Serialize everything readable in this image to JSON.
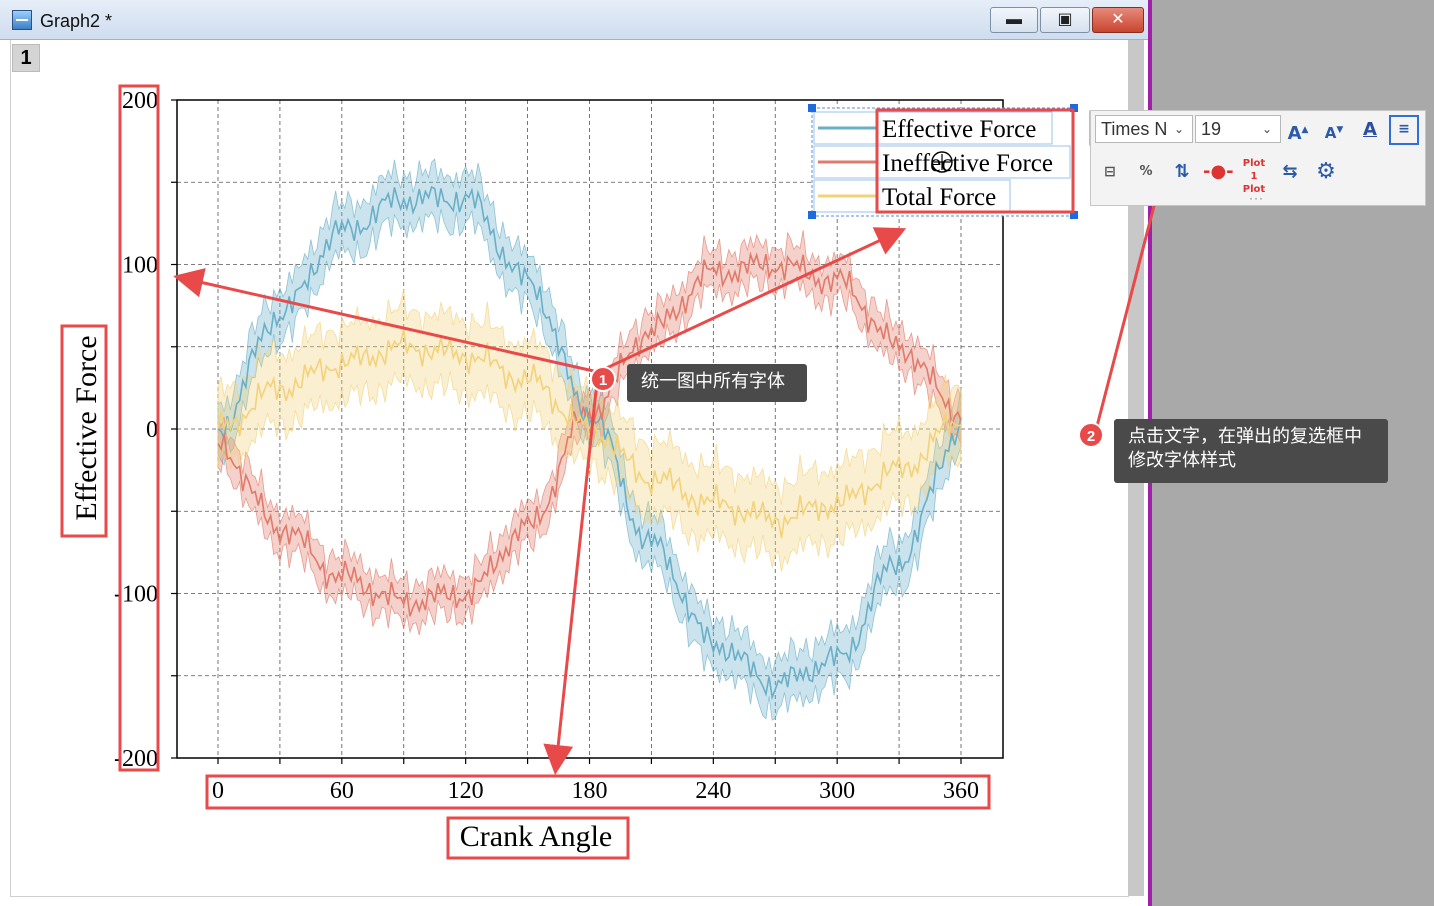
{
  "window": {
    "title": "Graph2 *",
    "layer_tab": "1",
    "buttons": {
      "minimize": "▬",
      "maximize": "▣",
      "close": "✕"
    }
  },
  "chart_data": {
    "type": "area",
    "title": "",
    "xlabel": "Crank Angle",
    "ylabel": "Effective Force",
    "xlim": [
      0,
      360
    ],
    "ylim": [
      -200,
      200
    ],
    "x_ticks": [
      0,
      60,
      120,
      180,
      240,
      300,
      360
    ],
    "x_tick_labels": [
      "0",
      "60",
      "120",
      "180",
      "240",
      "300",
      "360"
    ],
    "y_ticks": [
      200,
      100,
      0,
      -100,
      -200
    ],
    "y_tick_labels": [
      "200",
      "100",
      "0",
      "-100",
      "-200"
    ],
    "grid": true,
    "legend_position": "top-right",
    "x": [
      0,
      30,
      60,
      90,
      120,
      150,
      180,
      210,
      240,
      270,
      300,
      330,
      360
    ],
    "series": [
      {
        "name": "Effective Force",
        "color": "#6aafc8",
        "values": [
          0,
          70,
          120,
          140,
          140,
          90,
          10,
          -70,
          -130,
          -155,
          -140,
          -80,
          0
        ],
        "band_halfwidth": 15
      },
      {
        "name": "Ineffective Force",
        "color": "#e07a6a",
        "values": [
          -10,
          -60,
          -90,
          -105,
          -100,
          -60,
          10,
          60,
          95,
          100,
          90,
          50,
          10
        ],
        "band_halfwidth": 12
      },
      {
        "name": "Total Force",
        "color": "#f2d27a",
        "values": [
          0,
          25,
          40,
          50,
          45,
          30,
          0,
          -30,
          -45,
          -55,
          -45,
          -25,
          5
        ],
        "band_halfwidth": 22
      }
    ]
  },
  "minitoolbar": {
    "font_name": "Times N",
    "font_size": "19",
    "icons": [
      "increase-font-size-icon",
      "decrease-font-size-icon",
      "font-color-icon",
      "legend-settings-icon",
      "legend-layout-icon",
      "percent-icon",
      "sort-icon",
      "line-symbol-icon",
      "plot-order-icon",
      "wrap-icon",
      "gear-icon"
    ]
  },
  "annotations": {
    "step1_number": "1",
    "step1_text": "统一图中所有字体",
    "step2_number": "2",
    "step2_text_line1": "点击文字，在弹出的复选框中",
    "step2_text_line2": "修改字体样式",
    "highlight_color": "#e84a4a"
  }
}
